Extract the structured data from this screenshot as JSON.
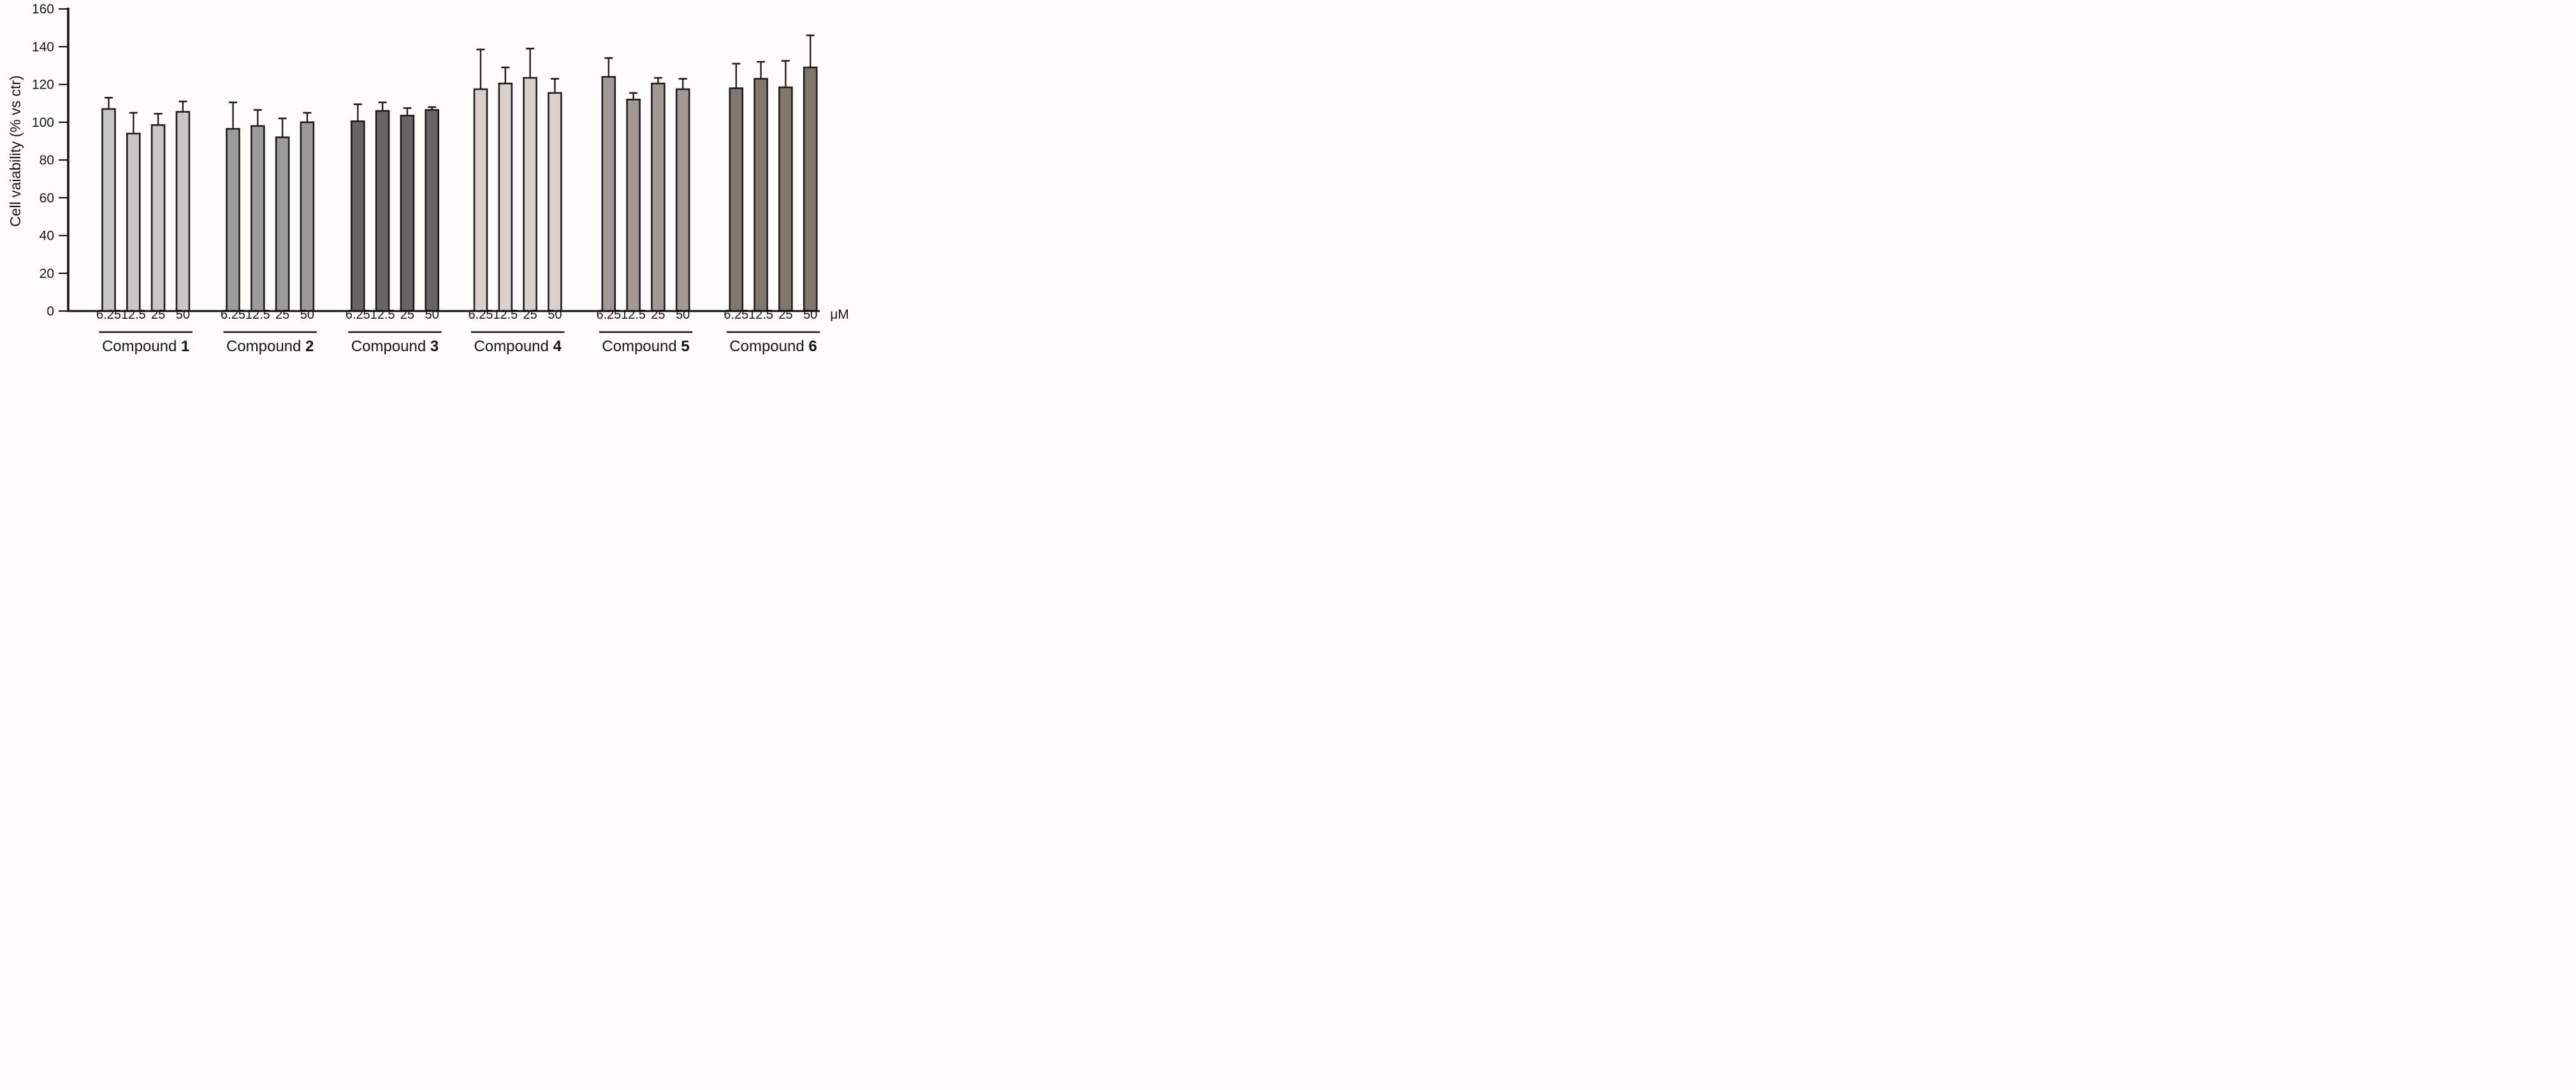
{
  "chart_data": {
    "type": "bar",
    "title": "",
    "xlabel": "",
    "ylabel": "Cell vaiability (% vs ctr)",
    "unit_label": "μM",
    "ylim": [
      0,
      160
    ],
    "yticks": [
      0,
      20,
      40,
      60,
      80,
      100,
      120,
      140,
      160
    ],
    "grid": false,
    "legend": "none",
    "error_bars": "upper-only-with-caps",
    "categories": [
      "6.25",
      "12.5",
      "25",
      "50"
    ],
    "groups": [
      {
        "label": "Compound",
        "number": "1",
        "color": "#c7c7c7",
        "values": [
          107,
          94,
          98.5,
          105.5
        ],
        "errors": [
          6,
          11,
          6,
          5.5
        ]
      },
      {
        "label": "Compound",
        "number": "2",
        "color": "#9b9b9b",
        "values": [
          96.5,
          98,
          92,
          100
        ],
        "errors": [
          14,
          8.5,
          10,
          5
        ]
      },
      {
        "label": "Compound",
        "number": "3",
        "color": "#656565",
        "values": [
          100.5,
          106,
          103.5,
          106.5
        ],
        "errors": [
          9,
          4.5,
          4,
          1.5
        ]
      },
      {
        "label": "Compound",
        "number": "4",
        "color": "#d8d1cb",
        "values": [
          117.5,
          120.5,
          123.5,
          115.5
        ],
        "errors": [
          21,
          8.5,
          15.5,
          7.5
        ]
      },
      {
        "label": "Compound",
        "number": "5",
        "color": "#a29894",
        "values": [
          124,
          112,
          120.5,
          117.5
        ],
        "errors": [
          10,
          3.5,
          3,
          5.5
        ]
      },
      {
        "label": "Compound",
        "number": "6",
        "color": "#7f766e",
        "values": [
          118,
          123,
          118.5,
          129
        ],
        "errors": [
          13,
          9,
          14,
          17
        ]
      }
    ],
    "bar_border_color": "#1f1d1b",
    "error_bar_color": "#1f1d1b",
    "axis_color": "#151413",
    "text_color": "#151413",
    "background": "#fffefa"
  }
}
